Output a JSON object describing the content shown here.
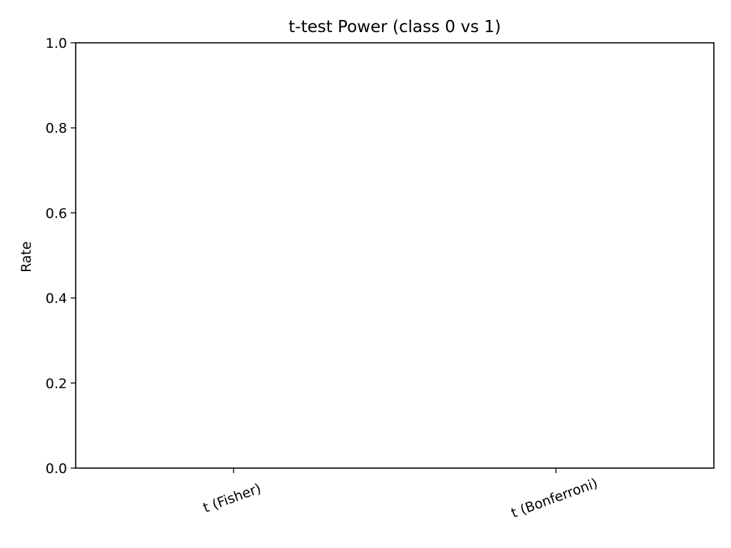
{
  "chart_data": {
    "type": "bar",
    "title": "t-test Power (class 0 vs 1)",
    "xlabel": "",
    "ylabel": "Rate",
    "categories": [
      "t (Fisher)",
      "t (Bonferroni)"
    ],
    "values": [
      0.0,
      0.0
    ],
    "ylim": [
      0.0,
      1.0
    ],
    "yticks": [
      "0.0",
      "0.2",
      "0.4",
      "0.6",
      "0.8",
      "1.0"
    ],
    "grid": false,
    "legend": "none",
    "bar_color": "#1f77b4"
  }
}
